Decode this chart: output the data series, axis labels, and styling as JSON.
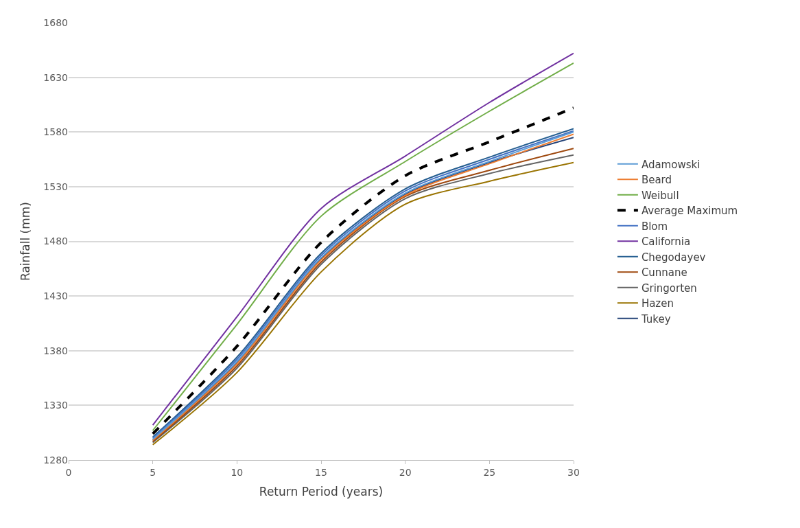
{
  "chart_data": {
    "type": "line",
    "xlabel": "Return Period (years)",
    "ylabel": "Rainfall (mm)",
    "x": [
      5,
      10,
      15,
      20,
      25,
      30
    ],
    "xlim": [
      0,
      30
    ],
    "xticks": [
      0,
      5,
      10,
      15,
      20,
      25,
      30
    ],
    "ylim": [
      1280,
      1680
    ],
    "yticks": [
      1280,
      1330,
      1380,
      1430,
      1480,
      1530,
      1580,
      1630,
      1680
    ],
    "grid": "y",
    "legend": "right",
    "line_style": "solid",
    "marker": "none",
    "series": [
      {
        "name": "Adamowski",
        "color": "#5b9bd5",
        "values": [
          1299,
          1370,
          1465,
          1524,
          1553,
          1580
        ]
      },
      {
        "name": "Beard",
        "color": "#ed7d31",
        "values": [
          1298,
          1368,
          1463,
          1522,
          1551,
          1578
        ]
      },
      {
        "name": "Weibull",
        "color": "#70ad47",
        "values": [
          1307,
          1404,
          1503,
          1553,
          1599,
          1643
        ]
      },
      {
        "name": "Average Maximum",
        "color": "#000000",
        "line_style": "dashed",
        "values": [
          1304,
          1384,
          1479,
          1540,
          1571,
          1602
        ]
      },
      {
        "name": "Blom",
        "color": "#4472c4",
        "values": [
          1300,
          1372,
          1467,
          1526,
          1555,
          1581
        ]
      },
      {
        "name": "California",
        "color": "#7030a0",
        "values": [
          1312,
          1411,
          1510,
          1558,
          1607,
          1652
        ]
      },
      {
        "name": "Chegodayev",
        "color": "#255e91",
        "values": [
          1301,
          1374,
          1469,
          1528,
          1557,
          1583
        ]
      },
      {
        "name": "Cunnane",
        "color": "#9e480e",
        "values": [
          1297,
          1366,
          1461,
          1521,
          1545,
          1565
        ]
      },
      {
        "name": "Gringorten",
        "color": "#636363",
        "values": [
          1296,
          1364,
          1459,
          1519,
          1542,
          1559
        ]
      },
      {
        "name": "Hazen",
        "color": "#997300",
        "values": [
          1294,
          1360,
          1452,
          1514,
          1535,
          1552
        ]
      },
      {
        "name": "Tukey",
        "color": "#264478",
        "values": [
          1298,
          1369,
          1464,
          1523,
          1552,
          1575
        ]
      }
    ]
  }
}
